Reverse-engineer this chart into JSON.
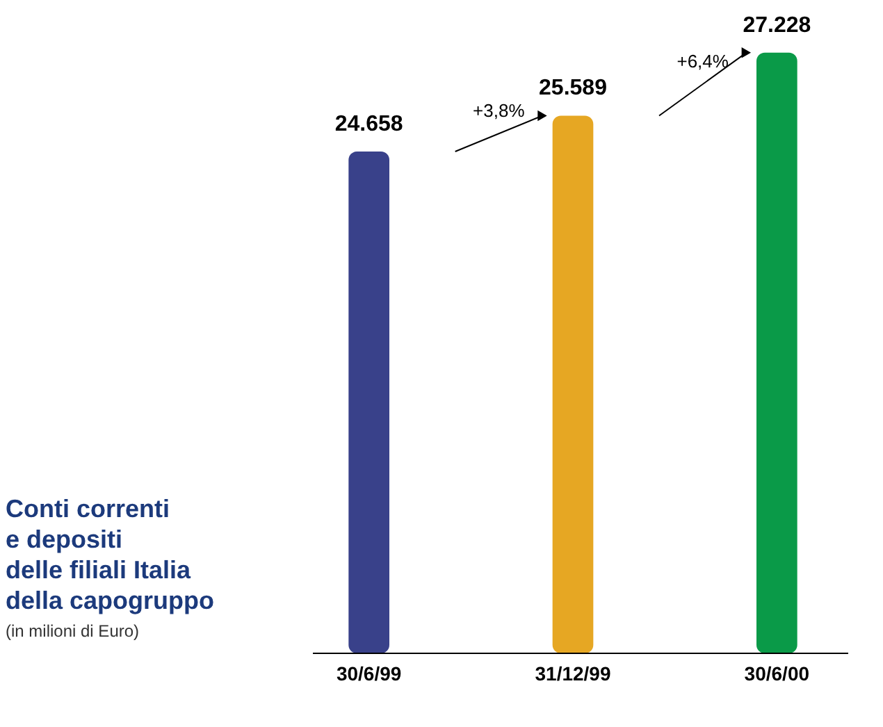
{
  "chart_data": {
    "type": "bar",
    "title": "Conti correnti\ne depositi\ndelle filiali Italia\ndella capogruppo",
    "subtitle": "(in milioni di Euro)",
    "categories": [
      "30/6/99",
      "31/12/99",
      "30/6/00"
    ],
    "values": [
      24658,
      25589,
      27228
    ],
    "value_labels": [
      "24.658",
      "25.589",
      "27.228"
    ],
    "colors": [
      "#39418a",
      "#e6a723",
      "#0a9a48"
    ],
    "ylim": [
      11600,
      28600
    ],
    "tick_labels": "x",
    "grid": false,
    "annotations": [
      "+3,8%",
      "+6,4%"
    ]
  }
}
